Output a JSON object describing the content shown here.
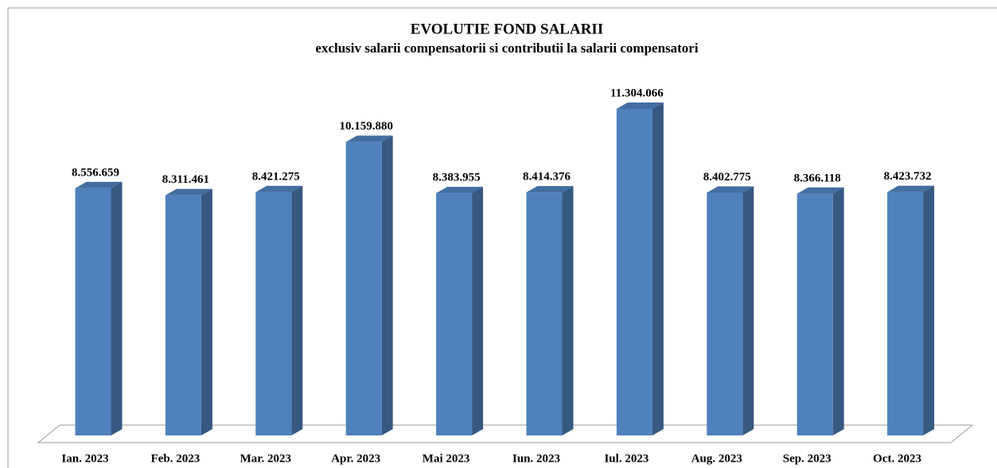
{
  "chart_data": {
    "type": "bar",
    "title": "EVOLUTIE FOND SALARII",
    "subtitle": "exclusiv salarii compensatorii si contributii la salarii compensatori",
    "categories": [
      "Ian. 2023",
      "Feb. 2023",
      "Mar. 2023",
      "Apr. 2023",
      "Mai 2023",
      "Iun. 2023",
      "Iul. 2023",
      "Aug. 2023",
      "Sep. 2023",
      "Oct. 2023"
    ],
    "values": [
      8556659,
      8311461,
      8421275,
      10159880,
      8383955,
      8414376,
      11304066,
      8402775,
      8366118,
      8423732
    ],
    "value_labels": [
      "8.556.659",
      "8.311.461",
      "8.421.275",
      "10.159.880",
      "8.383.955",
      "8.414.376",
      "11.304.066",
      "8.402.775",
      "8.366.118",
      "8.423.732"
    ],
    "color": "#4f81bd"
  }
}
